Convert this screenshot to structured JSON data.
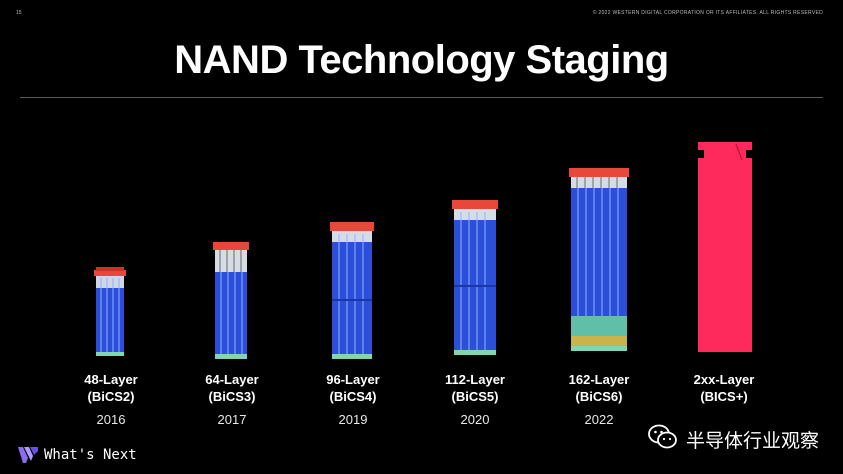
{
  "slide": {
    "page_number": "15",
    "copyright": "© 2022 WESTERN DIGITAL CORPORATION OR ITS AFFILIATES. ALL RIGHTS RESERVED",
    "title": "NAND Technology Staging"
  },
  "stages": [
    {
      "layers": "48-Layer",
      "code": "(BiCS2)",
      "year": "2016"
    },
    {
      "layers": "64-Layer",
      "code": "(BiCS3)",
      "year": "2017"
    },
    {
      "layers": "96-Layer",
      "code": "(BiCS4)",
      "year": "2019"
    },
    {
      "layers": "112-Layer",
      "code": "(BiCS5)",
      "year": "2020"
    },
    {
      "layers": "162-Layer",
      "code": "(BiCS6)",
      "year": "2022"
    },
    {
      "layers": "2xx-Layer",
      "code": "(BICS+)",
      "year": ""
    }
  ],
  "footer": {
    "brand_text": "What's Next",
    "logo_icon": "wd-logo-icon"
  },
  "watermark": {
    "icon": "wechat-icon",
    "text": "半导体行业观察"
  },
  "colors": {
    "background": "#000000",
    "chip_blue": "#2b4fd8",
    "chip_cap": "#e8473a",
    "future_chip": "#ff2a5c"
  }
}
